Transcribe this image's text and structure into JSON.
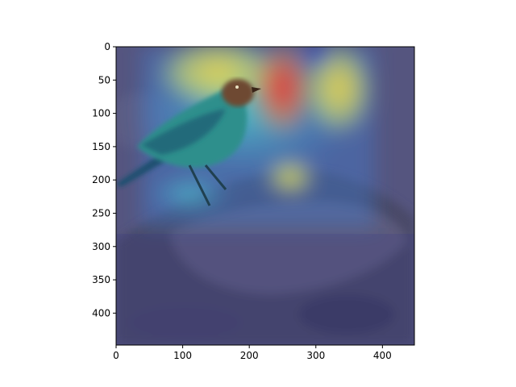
{
  "image": {
    "subject": "bird perched on rock with attention heatmap overlay",
    "heatmap_colormap": "jet"
  },
  "axes": {
    "x_ticks": [
      "0",
      "100",
      "200",
      "300",
      "400"
    ],
    "y_ticks": [
      "0",
      "50",
      "100",
      "150",
      "200",
      "250",
      "300",
      "350",
      "400"
    ],
    "x_range": [
      0,
      448
    ],
    "y_range": [
      0,
      448
    ],
    "y_inverted": true
  },
  "colors": {
    "rock": "#4b4a6a",
    "background": "#5a5a86",
    "bird_body": "#2f8c8a",
    "bird_head": "#7a4a2a"
  }
}
